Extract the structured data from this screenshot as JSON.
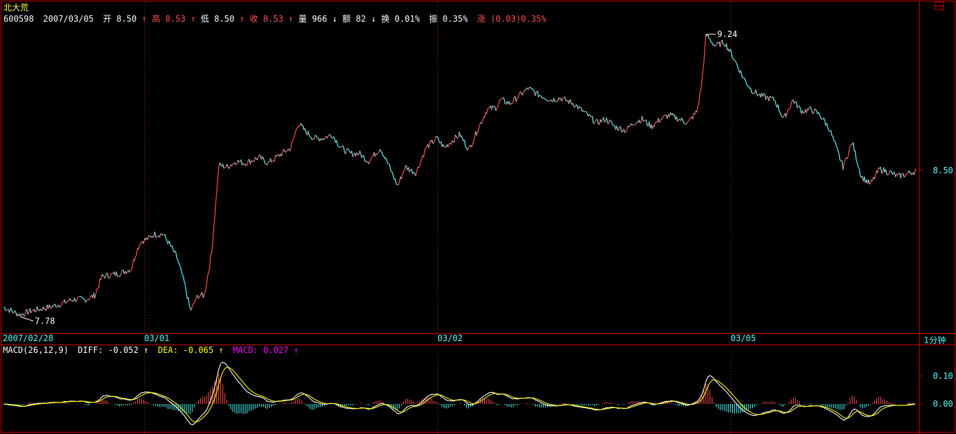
{
  "colors": {
    "background": "#000000",
    "frame": "#cc0000",
    "up": "#ff5050",
    "down": "#54fcfc",
    "text_white": "#ffffff",
    "text_red": "#ff5050",
    "text_yellow": "#ffff00",
    "text_magenta": "#ff00ff",
    "axis_cyan": "#54fcfc",
    "title_yellow": "#ffff54"
  },
  "header": {
    "stock_name": "北大荒",
    "code": "600598",
    "date": "2007/03/05",
    "open_label": "开",
    "open_value": "8.50",
    "open_arrow": "↑",
    "high_label": "高",
    "high_value": "8.53",
    "high_arrow": "↑",
    "low_label": "低",
    "low_value": "8.50",
    "low_arrow": "↑",
    "close_label": "收",
    "close_value": "8.53",
    "close_arrow": "↑",
    "vol_label": "量",
    "vol_value": "966",
    "vol_arrow": "↓",
    "amount_label": "额",
    "amount_value": "82",
    "amount_arrow": "↓",
    "turnover_label": "换",
    "turnover_value": "0.01%",
    "amplitude_label": "振",
    "amplitude_value": "0.35%",
    "change_label": "涨",
    "change_value": "(0.03)0.35%"
  },
  "price_panel": {
    "right_axis_label": "8.50",
    "max_marker": "9.24",
    "min_marker": "7.78",
    "top_icon": "日"
  },
  "x_axis": {
    "labels": [
      "2007/02/28",
      "03/01",
      "03/02",
      "03/05"
    ],
    "period_label": "1分钟"
  },
  "macd_panel": {
    "title": "MACD(26,12,9)",
    "diff_label": "DIFF:",
    "diff_value": "-0.052",
    "diff_arrow": "↑",
    "dea_label": "DEA:",
    "dea_value": "-0.065",
    "dea_arrow": "↑",
    "macd_label": "MACD:",
    "macd_value": "0.027",
    "macd_arrow": "↑",
    "axis_labels": [
      "0.10",
      "0.00"
    ]
  },
  "chart_data": [
    {
      "type": "line",
      "title": "北大荒 600598 1分钟",
      "note": "intraday 1-minute price line, 4 sessions, values approximate",
      "x_sessions": [
        "2007/02/28",
        "03/01",
        "03/02",
        "03/05"
      ],
      "y_min_label": 7.78,
      "y_max_label": 9.24,
      "ylim": [
        7.72,
        9.3
      ],
      "price_anchors": [
        [
          0,
          7.82
        ],
        [
          0.018,
          7.78
        ],
        [
          0.03,
          7.8
        ],
        [
          0.05,
          7.82
        ],
        [
          0.065,
          7.84
        ],
        [
          0.075,
          7.86
        ],
        [
          0.09,
          7.86
        ],
        [
          0.1,
          7.88
        ],
        [
          0.108,
          7.98
        ],
        [
          0.12,
          7.99
        ],
        [
          0.13,
          8.0
        ],
        [
          0.14,
          8.02
        ],
        [
          0.145,
          8.1
        ],
        [
          0.15,
          8.16
        ],
        [
          0.16,
          8.18
        ],
        [
          0.165,
          8.2
        ],
        [
          0.175,
          8.2
        ],
        [
          0.183,
          8.14
        ],
        [
          0.19,
          8.08
        ],
        [
          0.198,
          7.95
        ],
        [
          0.205,
          7.8
        ],
        [
          0.213,
          7.88
        ],
        [
          0.22,
          7.88
        ],
        [
          0.228,
          8.1
        ],
        [
          0.236,
          8.56
        ],
        [
          0.245,
          8.55
        ],
        [
          0.255,
          8.58
        ],
        [
          0.265,
          8.57
        ],
        [
          0.28,
          8.6
        ],
        [
          0.29,
          8.57
        ],
        [
          0.305,
          8.62
        ],
        [
          0.315,
          8.65
        ],
        [
          0.323,
          8.78
        ],
        [
          0.33,
          8.74
        ],
        [
          0.34,
          8.7
        ],
        [
          0.35,
          8.7
        ],
        [
          0.36,
          8.72
        ],
        [
          0.37,
          8.65
        ],
        [
          0.38,
          8.62
        ],
        [
          0.39,
          8.62
        ],
        [
          0.4,
          8.58
        ],
        [
          0.413,
          8.65
        ],
        [
          0.423,
          8.55
        ],
        [
          0.432,
          8.45
        ],
        [
          0.44,
          8.55
        ],
        [
          0.452,
          8.52
        ],
        [
          0.463,
          8.65
        ],
        [
          0.475,
          8.7
        ],
        [
          0.483,
          8.65
        ],
        [
          0.49,
          8.68
        ],
        [
          0.5,
          8.72
        ],
        [
          0.51,
          8.64
        ],
        [
          0.52,
          8.75
        ],
        [
          0.53,
          8.85
        ],
        [
          0.54,
          8.86
        ],
        [
          0.545,
          8.9
        ],
        [
          0.555,
          8.88
        ],
        [
          0.565,
          8.92
        ],
        [
          0.575,
          8.96
        ],
        [
          0.585,
          8.93
        ],
        [
          0.6,
          8.9
        ],
        [
          0.61,
          8.91
        ],
        [
          0.625,
          8.88
        ],
        [
          0.64,
          8.82
        ],
        [
          0.65,
          8.78
        ],
        [
          0.66,
          8.8
        ],
        [
          0.67,
          8.76
        ],
        [
          0.682,
          8.74
        ],
        [
          0.69,
          8.78
        ],
        [
          0.7,
          8.8
        ],
        [
          0.71,
          8.76
        ],
        [
          0.72,
          8.8
        ],
        [
          0.73,
          8.82
        ],
        [
          0.74,
          8.8
        ],
        [
          0.75,
          8.78
        ],
        [
          0.76,
          8.84
        ],
        [
          0.765,
          8.98
        ],
        [
          0.77,
          9.24
        ],
        [
          0.78,
          9.18
        ],
        [
          0.79,
          9.2
        ],
        [
          0.8,
          9.12
        ],
        [
          0.81,
          9.02
        ],
        [
          0.82,
          8.95
        ],
        [
          0.83,
          8.92
        ],
        [
          0.845,
          8.9
        ],
        [
          0.855,
          8.8
        ],
        [
          0.865,
          8.9
        ],
        [
          0.875,
          8.84
        ],
        [
          0.885,
          8.85
        ],
        [
          0.895,
          8.82
        ],
        [
          0.905,
          8.75
        ],
        [
          0.92,
          8.55
        ],
        [
          0.93,
          8.68
        ],
        [
          0.94,
          8.5
        ],
        [
          0.95,
          8.46
        ],
        [
          0.96,
          8.54
        ],
        [
          0.972,
          8.52
        ],
        [
          0.98,
          8.5
        ],
        [
          1.0,
          8.53
        ]
      ]
    },
    {
      "type": "bar",
      "title": "MACD(26,12,9)",
      "series": [
        {
          "name": "DIFF",
          "last": -0.052
        },
        {
          "name": "DEA",
          "last": -0.065
        },
        {
          "name": "MACD",
          "last": 0.027
        }
      ],
      "ylim": [
        -0.1,
        0.18
      ],
      "y_ticks": [
        0.1,
        0.0
      ]
    }
  ]
}
